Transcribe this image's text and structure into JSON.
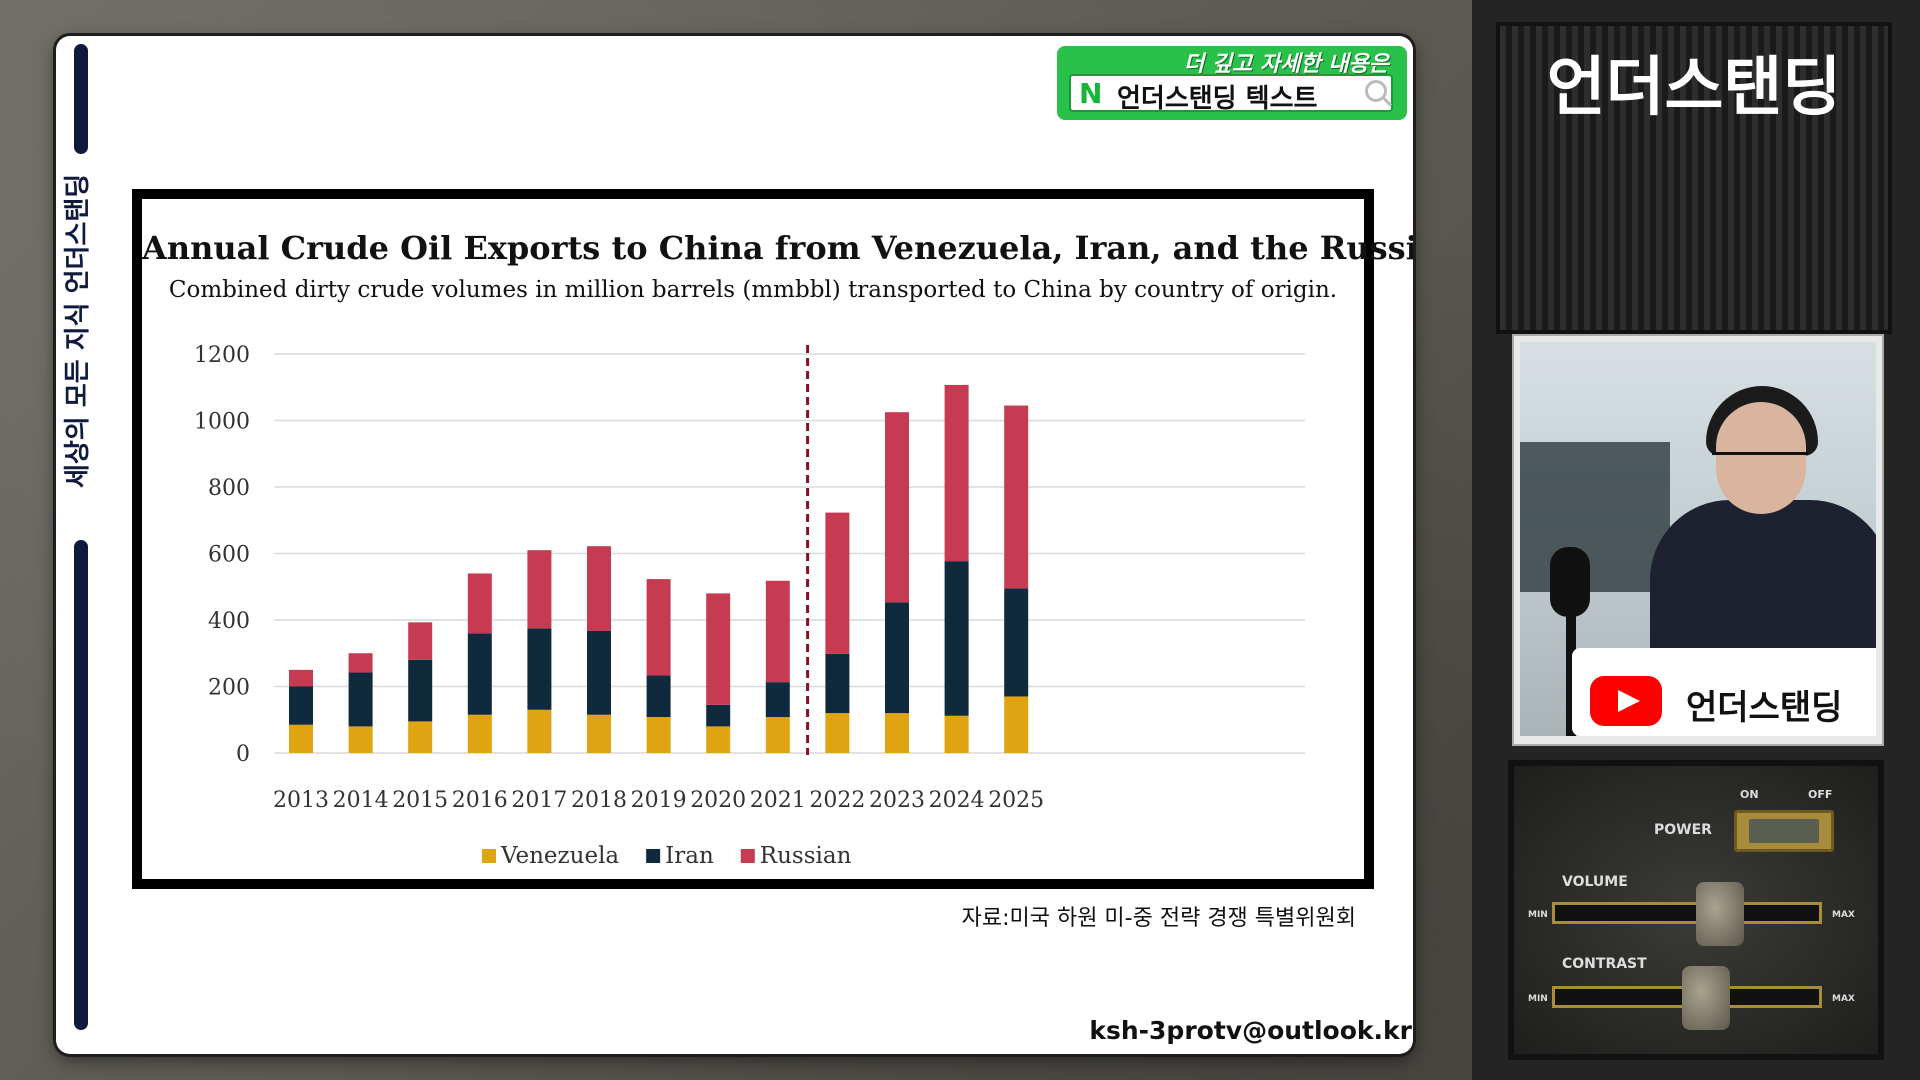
{
  "sidebar": {
    "vertical_text": "세상의 모든 지식  언더스탠딩"
  },
  "badge": {
    "top_text": "더 깊고 자세한 내용은",
    "n_logo": "N",
    "search_text": "언더스탠딩 텍스트"
  },
  "chart_data": {
    "type": "bar",
    "stacked": true,
    "title": "Annual Crude Oil Exports to China from Venezuela, Iran, and the Russian",
    "subtitle": "Combined dirty crude volumes in million barrels (mmbbl) transported to China by country of origin.",
    "categories": [
      "2013",
      "2014",
      "2015",
      "2016",
      "2017",
      "2018",
      "2019",
      "2020",
      "2021",
      "2022",
      "2023",
      "2024",
      "2025"
    ],
    "series": [
      {
        "name": "Venezuela",
        "color": "#e0a311",
        "values": [
          85,
          80,
          95,
          115,
          130,
          115,
          108,
          80,
          108,
          120,
          120,
          112,
          170
        ]
      },
      {
        "name": "Iran",
        "color": "#0f2a3c",
        "values": [
          115,
          162,
          185,
          245,
          245,
          252,
          125,
          65,
          105,
          178,
          333,
          465,
          325
        ]
      },
      {
        "name": "Russian",
        "color": "#c63b52",
        "values": [
          50,
          58,
          113,
          180,
          235,
          255,
          290,
          335,
          305,
          425,
          572,
          530,
          550
        ]
      }
    ],
    "ylim": [
      0,
      1200
    ],
    "yticks": [
      0,
      200,
      400,
      600,
      800,
      1000,
      1200
    ],
    "grid": true,
    "divider_after": "2021",
    "legend_position": "bottom-center"
  },
  "source": "자료:미국 하원 미-중 전략 경쟁 특별위원회",
  "email": "ksh-3protv@outlook.kr",
  "channel": {
    "name": "언더스탠딩",
    "yt_label": "언더스탠딩"
  },
  "controls": {
    "on": "ON",
    "off": "OFF",
    "power": "POWER",
    "volume": "VOLUME",
    "contrast": "CONTRAST",
    "min": "MIN",
    "max": "MAX"
  }
}
